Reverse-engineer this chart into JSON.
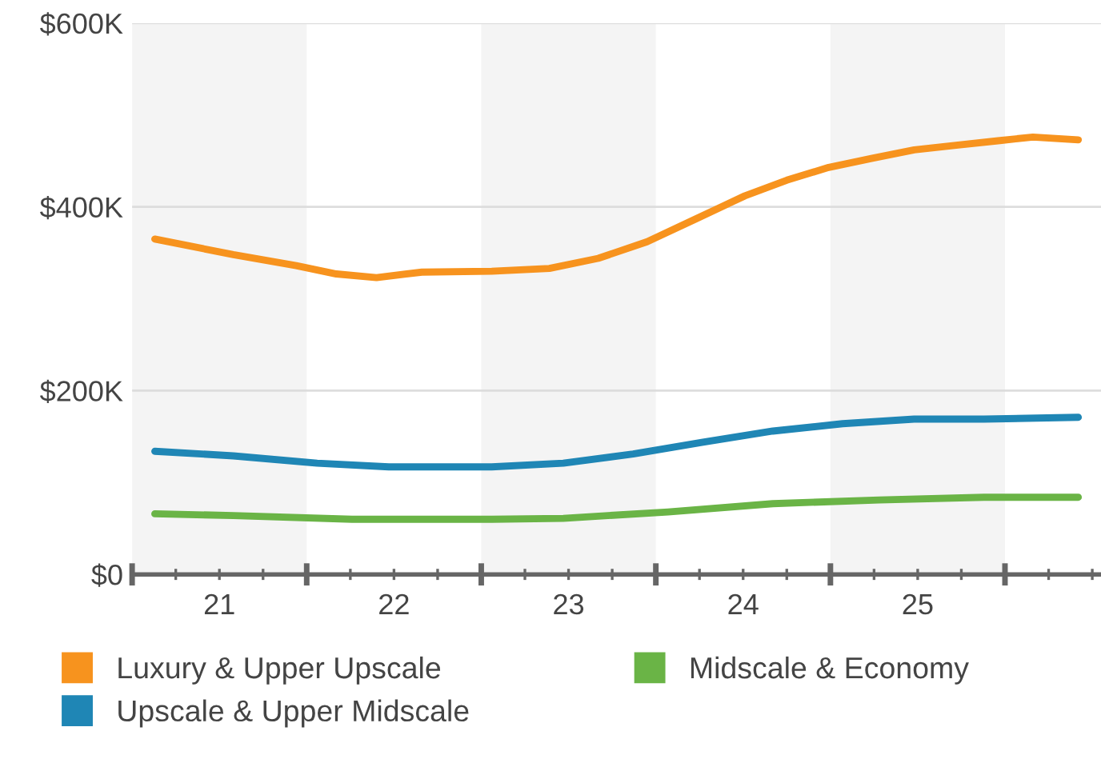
{
  "chart_data": {
    "type": "line",
    "ylim": [
      0,
      600
    ],
    "yticks": [
      {
        "value": 0,
        "label": "$0"
      },
      {
        "value": 200,
        "label": "$200K"
      },
      {
        "value": 400,
        "label": "$400K"
      },
      {
        "value": 600,
        "label": "$600K"
      }
    ],
    "xlim": [
      21,
      26.55
    ],
    "xticks": [
      {
        "value": 21,
        "label": null
      },
      {
        "value": 21.25,
        "label": null
      },
      {
        "value": 21.5,
        "label": "21"
      },
      {
        "value": 21.75,
        "label": null
      },
      {
        "value": 22,
        "label": null
      },
      {
        "value": 22.25,
        "label": null
      },
      {
        "value": 22.5,
        "label": "22"
      },
      {
        "value": 22.75,
        "label": null
      },
      {
        "value": 23,
        "label": null
      },
      {
        "value": 23.25,
        "label": null
      },
      {
        "value": 23.5,
        "label": "23"
      },
      {
        "value": 23.75,
        "label": null
      },
      {
        "value": 24,
        "label": null
      },
      {
        "value": 24.25,
        "label": null
      },
      {
        "value": 24.5,
        "label": "24"
      },
      {
        "value": 24.75,
        "label": null
      },
      {
        "value": 25,
        "label": null
      },
      {
        "value": 25.25,
        "label": null
      },
      {
        "value": 25.5,
        "label": "25"
      },
      {
        "value": 25.75,
        "label": null
      },
      {
        "value": 26,
        "label": null
      },
      {
        "value": 26.25,
        "label": null
      },
      {
        "value": 26.5,
        "label": null
      }
    ],
    "grid": "y",
    "legend": "bottom",
    "marker": "none",
    "line_style": "solid",
    "bands": [
      {
        "axis": "x",
        "from": 21,
        "to": 22,
        "color": "#f4f4f4"
      },
      {
        "axis": "x",
        "from": 23,
        "to": 24,
        "color": "#f4f4f4"
      },
      {
        "axis": "x",
        "from": 25,
        "to": 26,
        "color": "#f4f4f4"
      }
    ],
    "series": [
      {
        "name": "Luxury & Upper Upscale",
        "color": "#f7931e",
        "x": [
          21.13,
          21.58,
          21.94,
          22.17,
          22.4,
          22.66,
          23.06,
          23.39,
          23.67,
          23.95,
          24.23,
          24.51,
          24.75,
          24.99,
          25.24,
          25.48,
          25.72,
          25.96,
          26.16,
          26.42
        ],
        "values": [
          365,
          348,
          336,
          327,
          323,
          329,
          330,
          333,
          344,
          362,
          387,
          412,
          429,
          443,
          453,
          462,
          467,
          472,
          476,
          473
        ]
      },
      {
        "name": "Upscale & Upper Midscale",
        "color": "#1f86b5",
        "x": [
          21.13,
          21.58,
          22.06,
          22.47,
          23.06,
          23.47,
          23.87,
          24.27,
          24.67,
          25.07,
          25.48,
          25.88,
          26.42
        ],
        "values": [
          134,
          129,
          121,
          117,
          117,
          121,
          131,
          144,
          156,
          164,
          169,
          169,
          171
        ]
      },
      {
        "name": "Midscale & Economy",
        "color": "#6ab446",
        "x": [
          21.13,
          21.58,
          22.26,
          23.06,
          23.47,
          24.07,
          24.67,
          25.28,
          25.88,
          26.42
        ],
        "values": [
          66,
          64,
          60,
          60,
          61,
          68,
          77,
          81,
          84,
          84
        ]
      }
    ]
  }
}
